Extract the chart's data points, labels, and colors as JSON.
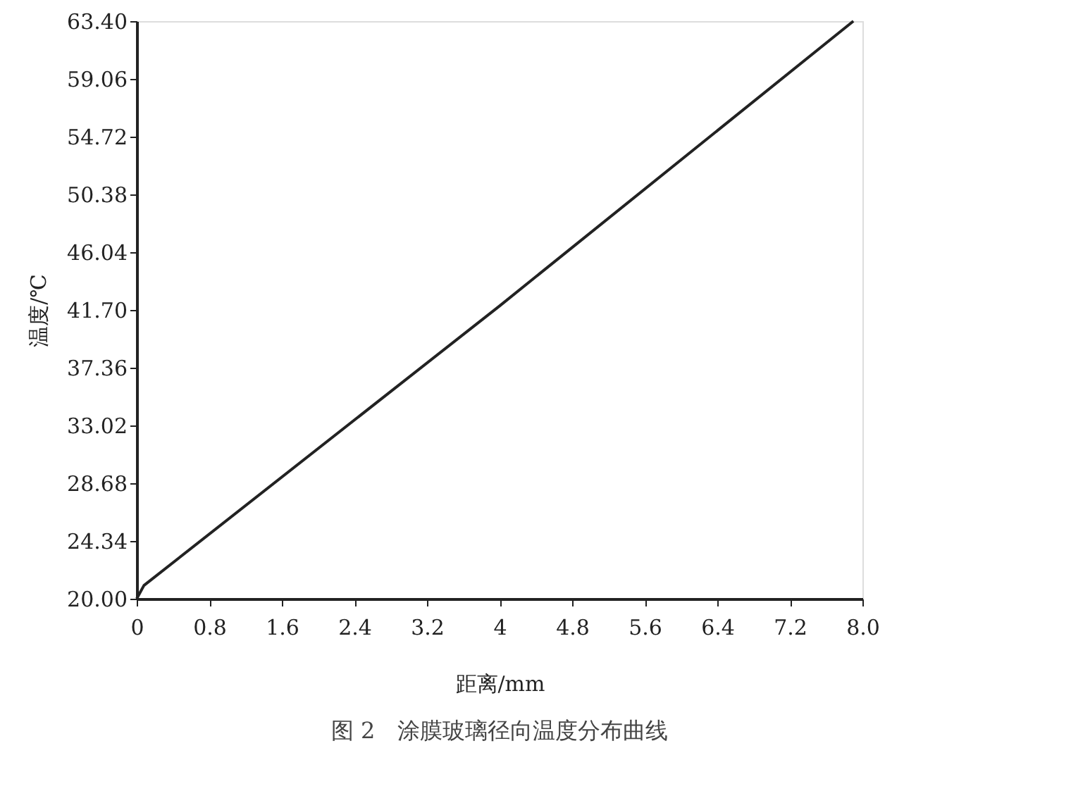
{
  "chart_data": {
    "type": "line",
    "xlabel": "距离/mm",
    "ylabel": "温度/℃",
    "annotations": [
      "图 2　涂膜玻璃径向温度分布曲线"
    ],
    "series": [
      {
        "color": "#222222",
        "x": [
          0,
          0.08,
          4.0,
          7.9
        ],
        "values": [
          20.0,
          21.0,
          42.0,
          63.4
        ]
      }
    ],
    "xlim": [
      0,
      8
    ],
    "ylim": [
      20,
      63.4
    ],
    "xticks": [
      {
        "value": 0,
        "label": "0"
      },
      0.8,
      1.6,
      2.4,
      3.2,
      {
        "value": 4,
        "label": "4"
      },
      4.8,
      5.6,
      6.4,
      7.2,
      {
        "value": 8,
        "label": "8.0"
      }
    ],
    "yticks": [
      {
        "value": 20,
        "label": "20.00"
      },
      24.34,
      28.68,
      33.02,
      37.36,
      {
        "value": 41.7,
        "label": "41.70"
      },
      46.04,
      50.38,
      54.72,
      59.06,
      {
        "value": 63.4,
        "label": "63.40"
      }
    ],
    "grid": false,
    "marker": "none",
    "line_style": "solid"
  }
}
